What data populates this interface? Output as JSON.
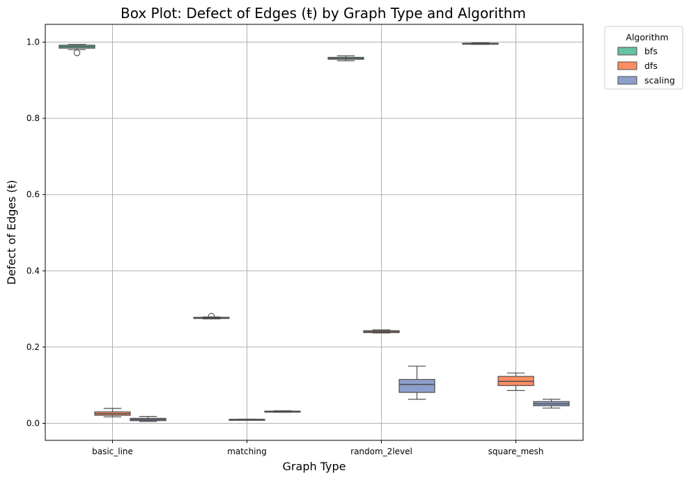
{
  "chart_data": {
    "type": "box",
    "title": "Box Plot: Defect of Edges (ŧ) by Graph Type and Algorithm",
    "xlabel": "Graph Type",
    "ylabel": "Defect of Edges (ŧ)",
    "ylim": [
      -0.045,
      1.048
    ],
    "yticks": [
      "0.0",
      "0.2",
      "0.4",
      "0.6",
      "0.8",
      "1.0"
    ],
    "grid": true,
    "categories": [
      "basic_line",
      "matching",
      "random_2level",
      "square_mesh"
    ],
    "legend": {
      "title": "Algorithm",
      "position": "upper-right-outside"
    },
    "series": [
      {
        "name": "bfs",
        "color": "#66c2a5",
        "boxes": [
          {
            "category": "basic_line",
            "whisker_low": 0.98,
            "q1": 0.984,
            "median": 0.988,
            "q3": 0.992,
            "whisker_high": 0.994,
            "outliers": [
              0.972
            ]
          },
          {
            "category": "matching",
            "whisker_low": 0.274,
            "q1": 0.275,
            "median": 0.276,
            "q3": 0.278,
            "whisker_high": 0.279,
            "outliers": [
              0.281
            ]
          },
          {
            "category": "random_2level",
            "whisker_low": 0.951,
            "q1": 0.955,
            "median": 0.957,
            "q3": 0.96,
            "whisker_high": 0.964,
            "outliers": []
          },
          {
            "category": "square_mesh",
            "whisker_low": 0.994,
            "q1": 0.995,
            "median": 0.996,
            "q3": 0.997,
            "whisker_high": 0.998,
            "outliers": []
          }
        ]
      },
      {
        "name": "dfs",
        "color": "#fc8d62",
        "boxes": [
          {
            "category": "basic_line",
            "whisker_low": 0.017,
            "q1": 0.021,
            "median": 0.025,
            "q3": 0.03,
            "whisker_high": 0.039,
            "outliers": []
          },
          {
            "category": "matching",
            "whisker_low": 0.009,
            "q1": 0.0095,
            "median": 0.01,
            "q3": 0.0105,
            "whisker_high": 0.011,
            "outliers": []
          },
          {
            "category": "random_2level",
            "whisker_low": 0.237,
            "q1": 0.238,
            "median": 0.24,
            "q3": 0.243,
            "whisker_high": 0.245,
            "outliers": []
          },
          {
            "category": "square_mesh",
            "whisker_low": 0.086,
            "q1": 0.099,
            "median": 0.11,
            "q3": 0.123,
            "whisker_high": 0.132,
            "outliers": []
          }
        ]
      },
      {
        "name": "scaling",
        "color": "#8da0cb",
        "boxes": [
          {
            "category": "basic_line",
            "whisker_low": 0.005,
            "q1": 0.007,
            "median": 0.01,
            "q3": 0.013,
            "whisker_high": 0.018,
            "outliers": []
          },
          {
            "category": "matching",
            "whisker_low": 0.029,
            "q1": 0.0295,
            "median": 0.031,
            "q3": 0.032,
            "whisker_high": 0.033,
            "outliers": []
          },
          {
            "category": "random_2level",
            "whisker_low": 0.063,
            "q1": 0.081,
            "median": 0.102,
            "q3": 0.115,
            "whisker_high": 0.15,
            "outliers": []
          },
          {
            "category": "square_mesh",
            "whisker_low": 0.04,
            "q1": 0.046,
            "median": 0.051,
            "q3": 0.057,
            "whisker_high": 0.063,
            "outliers": []
          }
        ]
      }
    ]
  }
}
